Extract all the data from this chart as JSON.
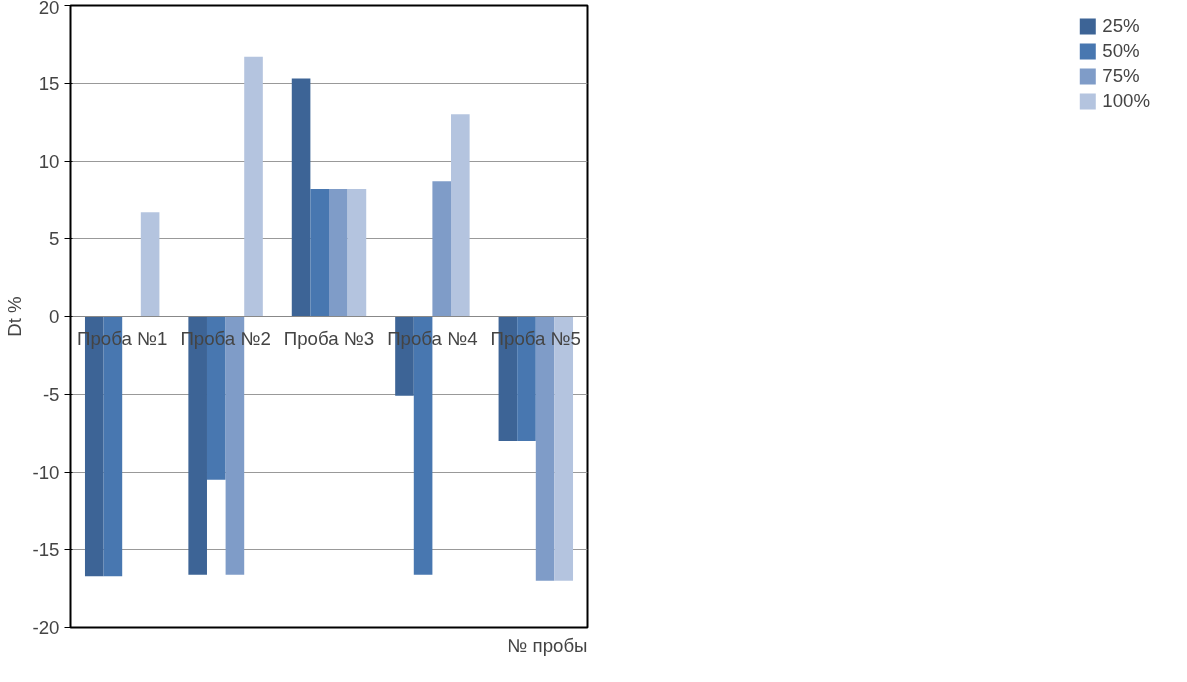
{
  "chart_data": {
    "type": "bar",
    "xlabel": "№ пробы",
    "ylabel": "Dt %",
    "categories": [
      "Проба №1",
      "Проба №2",
      "Проба №3",
      "Проба №4",
      "Проба №5"
    ],
    "series": [
      {
        "name": "25%",
        "color": "#3d6496",
        "values": [
          -16.7,
          -16.6,
          15.3,
          -5.1,
          -8.0
        ]
      },
      {
        "name": "50%",
        "color": "#4877b0",
        "values": [
          -16.7,
          -10.5,
          8.2,
          -16.6,
          -8.0
        ]
      },
      {
        "name": "75%",
        "color": "#7f9cc8",
        "values": [
          0,
          -16.6,
          8.2,
          8.7,
          -17.0
        ]
      },
      {
        "name": "100%",
        "color": "#b4c4df",
        "values": [
          6.7,
          16.7,
          8.2,
          13.0,
          -17.0
        ]
      }
    ],
    "ylim": [
      -20,
      20
    ],
    "yticks": [
      -20,
      -15,
      -10,
      -5,
      0,
      5,
      10,
      15,
      20
    ],
    "grid": "y",
    "legend": "right"
  }
}
